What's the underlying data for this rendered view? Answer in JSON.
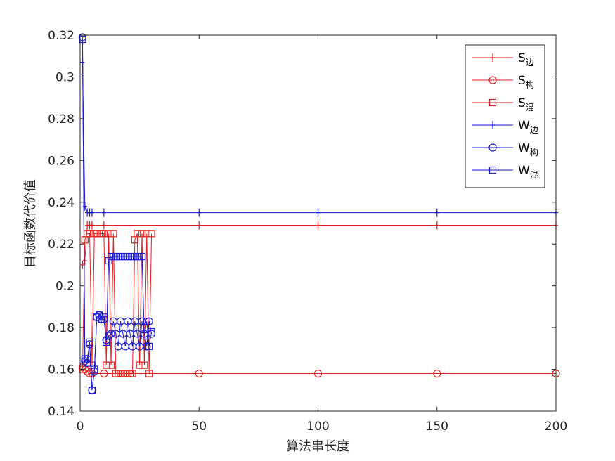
{
  "chart_data": {
    "type": "line",
    "xlabel": "算法串长度",
    "ylabel": "目标函数代价值",
    "xlim": [
      0,
      200
    ],
    "ylim": [
      0.14,
      0.32
    ],
    "x_ticks": [
      "0",
      "50",
      "100",
      "150",
      "200"
    ],
    "y_ticks": [
      "0.14",
      "0.16",
      "0.18",
      "0.2",
      "0.22",
      "0.24",
      "0.26",
      "0.28",
      "0.3",
      "0.32"
    ],
    "legend_position": "top-right",
    "grid": false,
    "colors": {
      "red": "#e02020",
      "blue": "#1a1ad0",
      "axis": "#262626"
    },
    "series": [
      {
        "name": "S边",
        "name_main": "S",
        "name_sub": "边",
        "color": "#e02020",
        "marker": "plus",
        "x": [
          1,
          2,
          3,
          4,
          5,
          10,
          50,
          100,
          150,
          200
        ],
        "values": [
          0.21,
          0.212,
          0.229,
          0.229,
          0.229,
          0.229,
          0.229,
          0.229,
          0.229,
          0.229
        ]
      },
      {
        "name": "S构",
        "name_main": "S",
        "name_sub": "构",
        "color": "#e02020",
        "marker": "circle",
        "x": [
          1,
          2,
          3,
          4,
          5,
          10,
          50,
          100,
          150,
          200
        ],
        "values": [
          0.161,
          0.16,
          0.159,
          0.158,
          0.158,
          0.158,
          0.158,
          0.158,
          0.158,
          0.158
        ]
      },
      {
        "name": "S混",
        "name_main": "S",
        "name_sub": "混",
        "color": "#e02020",
        "marker": "square",
        "x": [
          1,
          2,
          3,
          4,
          5,
          6,
          7,
          8,
          9,
          10,
          11,
          12,
          13,
          14,
          15,
          16,
          17,
          18,
          19,
          20,
          21,
          22,
          23,
          24,
          25,
          26,
          27,
          28,
          29,
          30
        ],
        "values": [
          0.16,
          0.222,
          0.225,
          0.225,
          0.162,
          0.225,
          0.225,
          0.225,
          0.225,
          0.225,
          0.162,
          0.225,
          0.162,
          0.225,
          0.158,
          0.158,
          0.158,
          0.158,
          0.158,
          0.158,
          0.158,
          0.158,
          0.222,
          0.225,
          0.162,
          0.225,
          0.162,
          0.225,
          0.158,
          0.225
        ]
      },
      {
        "name": "W边",
        "name_main": "W",
        "name_sub": "边",
        "color": "#1a1ad0",
        "marker": "plus",
        "x": [
          1,
          2,
          3,
          4,
          5,
          10,
          50,
          100,
          150,
          200
        ],
        "values": [
          0.307,
          0.238,
          0.235,
          0.235,
          0.235,
          0.235,
          0.235,
          0.235,
          0.235,
          0.235
        ]
      },
      {
        "name": "W构",
        "name_main": "W",
        "name_sub": "构",
        "color": "#1a1ad0",
        "marker": "circle",
        "x": [
          1,
          2,
          3,
          4,
          5,
          6,
          7,
          8,
          9,
          10,
          11,
          12,
          13,
          14,
          15,
          16,
          17,
          18,
          19,
          20,
          21,
          22,
          23,
          24,
          25,
          26,
          27,
          28,
          29,
          30
        ],
        "values": [
          0.319,
          0.164,
          0.165,
          0.172,
          0.15,
          0.159,
          0.185,
          0.186,
          0.184,
          0.184,
          0.174,
          0.176,
          0.177,
          0.183,
          0.177,
          0.171,
          0.183,
          0.177,
          0.171,
          0.183,
          0.177,
          0.171,
          0.183,
          0.177,
          0.171,
          0.183,
          0.177,
          0.171,
          0.183,
          0.177
        ]
      },
      {
        "name": "W混",
        "name_main": "W",
        "name_sub": "混",
        "color": "#1a1ad0",
        "marker": "square",
        "x": [
          1,
          2,
          3,
          4,
          5,
          6,
          7,
          8,
          9,
          10,
          11,
          12,
          13,
          14,
          15,
          16,
          17,
          18,
          19,
          20,
          21,
          22,
          23,
          24,
          25,
          26,
          27,
          28,
          29,
          30
        ],
        "values": [
          0.318,
          0.165,
          0.163,
          0.173,
          0.15,
          0.16,
          0.185,
          0.186,
          0.184,
          0.185,
          0.173,
          0.212,
          0.214,
          0.214,
          0.214,
          0.214,
          0.214,
          0.214,
          0.214,
          0.214,
          0.214,
          0.214,
          0.214,
          0.214,
          0.214,
          0.214,
          0.176,
          0.183,
          0.171,
          0.178
        ]
      }
    ]
  }
}
